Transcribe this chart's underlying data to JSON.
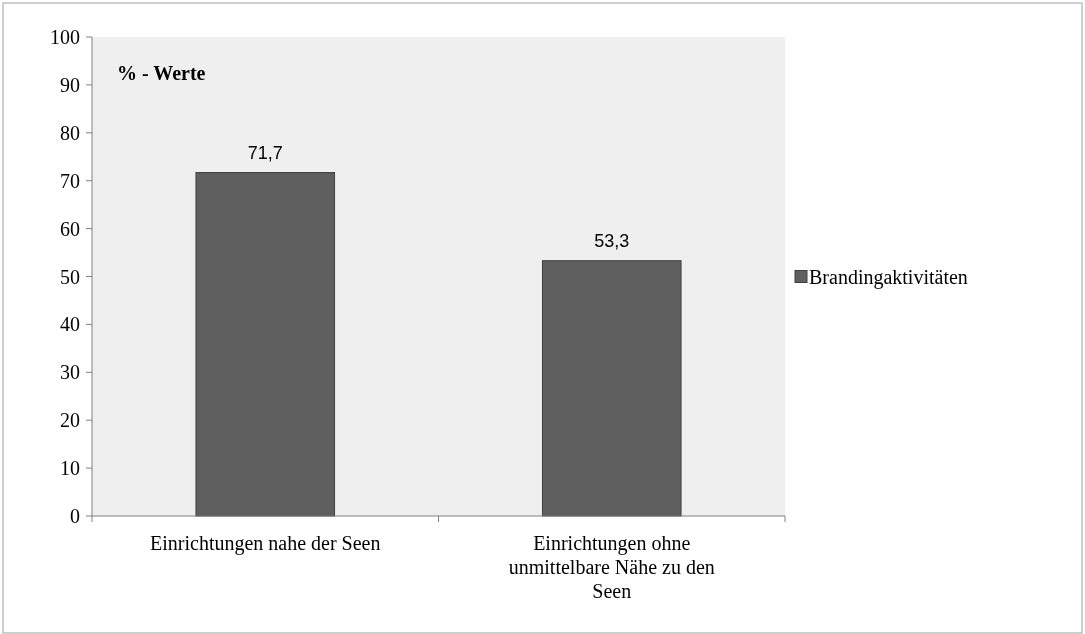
{
  "chart_data": {
    "type": "bar",
    "title": "% - Werte",
    "categories": [
      "Einrichtungen nahe der Seen",
      "Einrichtungen ohne unmittelbare Nähe zu den Seen"
    ],
    "series": [
      {
        "name": "Brandingaktivitäten",
        "color": "#5f5f5f",
        "values": [
          71.7,
          53.3
        ]
      }
    ],
    "value_labels": [
      "71,7",
      "53,3"
    ],
    "ylim": [
      0,
      100
    ],
    "yticks": [
      0,
      10,
      20,
      30,
      40,
      50,
      60,
      70,
      80,
      90,
      100
    ],
    "grid": false,
    "legend": "right"
  }
}
